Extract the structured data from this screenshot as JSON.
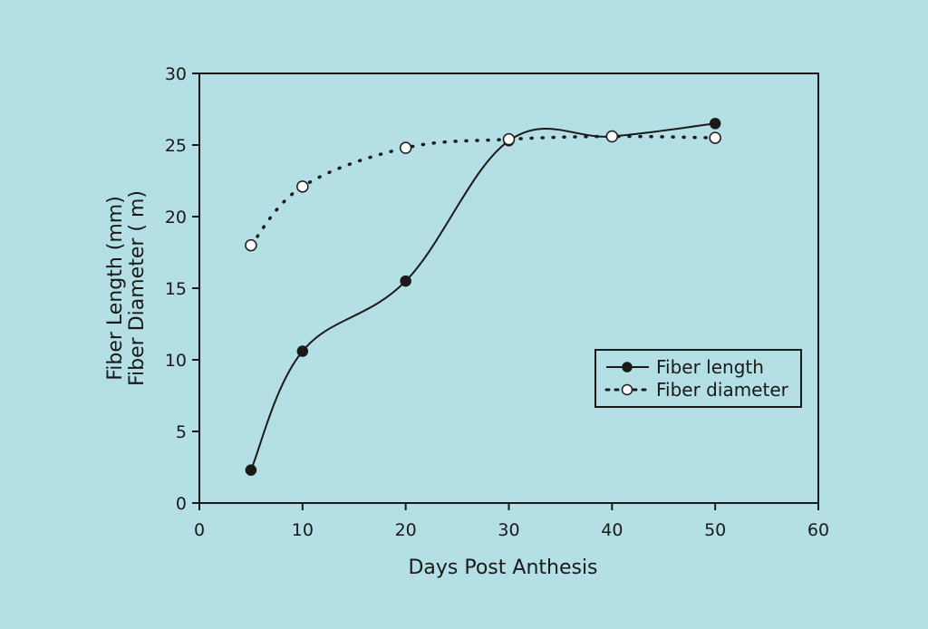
{
  "chart_data": {
    "type": "line",
    "title": "",
    "xlabel": "Days Post Anthesis",
    "ylabel_line1": "Fiber Length (mm)",
    "ylabel_line2": "Fiber Diameter ( m)",
    "xlim": [
      0,
      60
    ],
    "ylim": [
      0,
      30
    ],
    "xticks": [
      "0",
      "10",
      "20",
      "30",
      "40",
      "50",
      "60"
    ],
    "yticks": [
      "0",
      "5",
      "10",
      "15",
      "20",
      "25",
      "30"
    ],
    "legend_position": "middle-right",
    "series": [
      {
        "name": "Fiber length",
        "style": "solid-line-filled-marker",
        "x": [
          5,
          10,
          20,
          30,
          40,
          50
        ],
        "y": [
          2.3,
          10.6,
          15.5,
          25.3,
          25.6,
          26.5
        ]
      },
      {
        "name": "Fiber diameter",
        "style": "dotted-line-open-marker",
        "x": [
          5,
          10,
          20,
          30,
          40,
          50
        ],
        "y": [
          18.0,
          22.1,
          24.8,
          25.4,
          25.6,
          25.5
        ]
      }
    ]
  },
  "colors": {
    "background": "#b4dfe5",
    "ink": "#1a1a1a"
  }
}
